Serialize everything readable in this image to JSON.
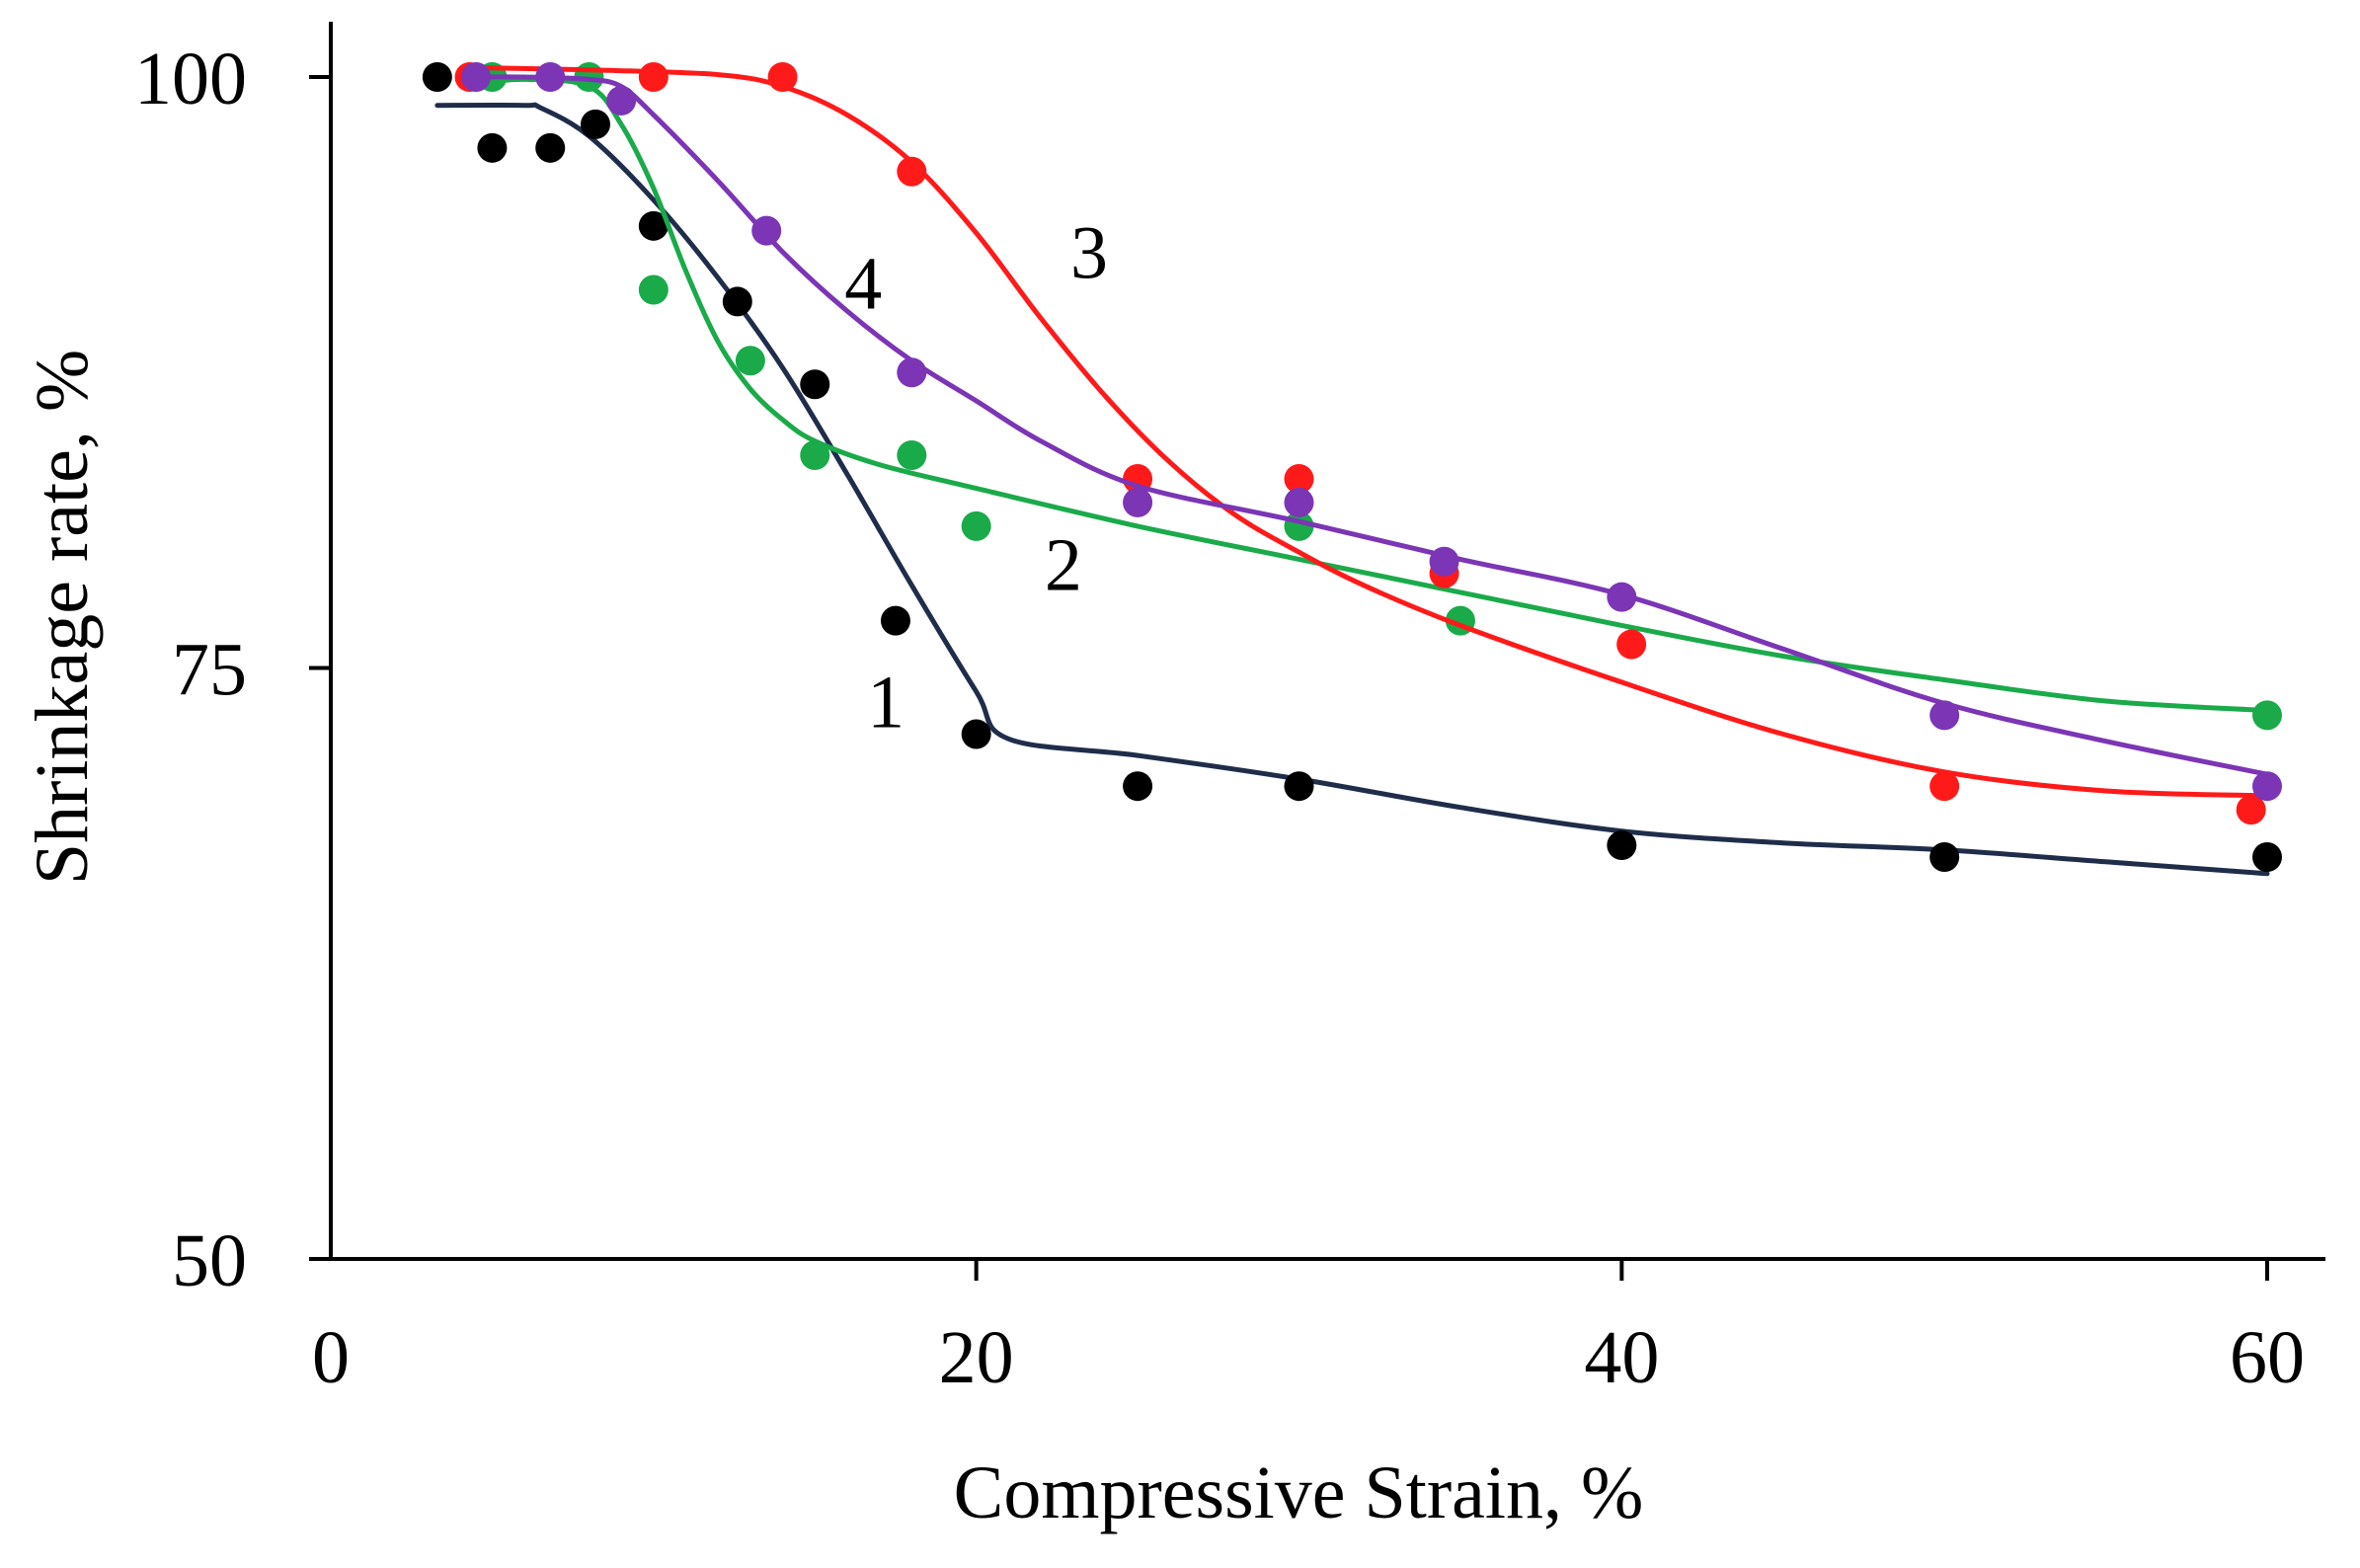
{
  "chart_data": {
    "type": "scatter",
    "xlabel": "Compressive Strain, %",
    "ylabel": "Shrinkage rate, %",
    "xlim": [
      0,
      62
    ],
    "ylim": [
      50,
      101
    ],
    "xticks": [
      0,
      20,
      40,
      60
    ],
    "yticks": [
      50,
      75,
      100
    ],
    "grid": false,
    "legend": "inline labels",
    "series": [
      {
        "name": "1",
        "color": "#000000",
        "line_color": "#1f2d4a",
        "x": [
          3.3,
          5,
          6.8,
          8.2,
          10,
          12.6,
          15,
          17.5,
          20,
          25,
          30,
          40,
          50,
          60
        ],
        "y": [
          100,
          97,
          97,
          98,
          93.7,
          90.5,
          87,
          77,
          72.2,
          70,
          70,
          67.5,
          67,
          67
        ],
        "fit_x": [
          3.3,
          6,
          6.5,
          8,
          10,
          12,
          14,
          16,
          18,
          20,
          21,
          25,
          30,
          35,
          40,
          45,
          50,
          55,
          60
        ],
        "fit_y": [
          98.8,
          98.8,
          98.7,
          97.5,
          94.8,
          91.5,
          87.7,
          83.2,
          78.5,
          74,
          72,
          71.3,
          70.3,
          69.1,
          68.1,
          67.6,
          67.3,
          66.8,
          66.3
        ]
      },
      {
        "name": "2",
        "color": "#1aaa4a",
        "line_color": "#1aaa4a",
        "x": [
          5,
          8,
          10,
          13,
          15,
          18,
          20,
          30,
          35,
          60
        ],
        "y": [
          100,
          100,
          91,
          88,
          84,
          84,
          81,
          81,
          77,
          73
        ],
        "fit_x": [
          4.3,
          6,
          8,
          9,
          10,
          11,
          12,
          13,
          14,
          15,
          17,
          20,
          25,
          30,
          35,
          40,
          45,
          50,
          55,
          60
        ],
        "fit_y": [
          99.7,
          99.9,
          99.6,
          98,
          95.3,
          91.8,
          88.8,
          86.8,
          85.5,
          84.6,
          83.6,
          82.6,
          81,
          79.6,
          78.2,
          76.8,
          75.5,
          74.5,
          73.6,
          73.2
        ]
      },
      {
        "name": "3",
        "color": "#ff1a1a",
        "line_color": "#ff1a1a",
        "x": [
          4.3,
          10,
          14,
          18,
          25,
          30,
          34.5,
          40.3,
          50,
          59.5
        ],
        "y": [
          100,
          100,
          100,
          96,
          83,
          83,
          79,
          76,
          70,
          69
        ],
        "fit_x": [
          4.3,
          8,
          12,
          14,
          16,
          18,
          20,
          22,
          24,
          26,
          28,
          30,
          32,
          35,
          40,
          45,
          50,
          55,
          60
        ],
        "fit_y": [
          100.4,
          100.3,
          100.1,
          99.6,
          98.4,
          96.4,
          93.4,
          89.8,
          86.5,
          83.7,
          81.5,
          79.9,
          78.5,
          76.8,
          74.4,
          72.2,
          70.6,
          69.8,
          69.6
        ]
      },
      {
        "name": "4",
        "color": "#7b35b5",
        "line_color": "#7b35b5",
        "x": [
          4.5,
          6.8,
          9,
          13.5,
          18,
          25,
          30,
          34.5,
          40,
          50,
          60
        ],
        "y": [
          100,
          100,
          99,
          93.5,
          87.5,
          82,
          82,
          79.5,
          78,
          73,
          70
        ],
        "fit_x": [
          4.5,
          6,
          8,
          9,
          10,
          12,
          14,
          16,
          18,
          20,
          22,
          25,
          30,
          35,
          40,
          45,
          50,
          55,
          60
        ],
        "fit_y": [
          100,
          100,
          99.9,
          99.6,
          98.4,
          95.6,
          92.6,
          90.1,
          88,
          86.3,
          84.6,
          82.7,
          81.2,
          79.6,
          78.1,
          75.8,
          73.5,
          71.9,
          70.5
        ]
      }
    ],
    "annotations": [
      {
        "text": "1",
        "x": 17.2,
        "y": 72.5
      },
      {
        "text": "2",
        "x": 22.7,
        "y": 78.3
      },
      {
        "text": "3",
        "x": 23.5,
        "y": 91.5
      },
      {
        "text": "4",
        "x": 16.5,
        "y": 90.2
      }
    ]
  }
}
